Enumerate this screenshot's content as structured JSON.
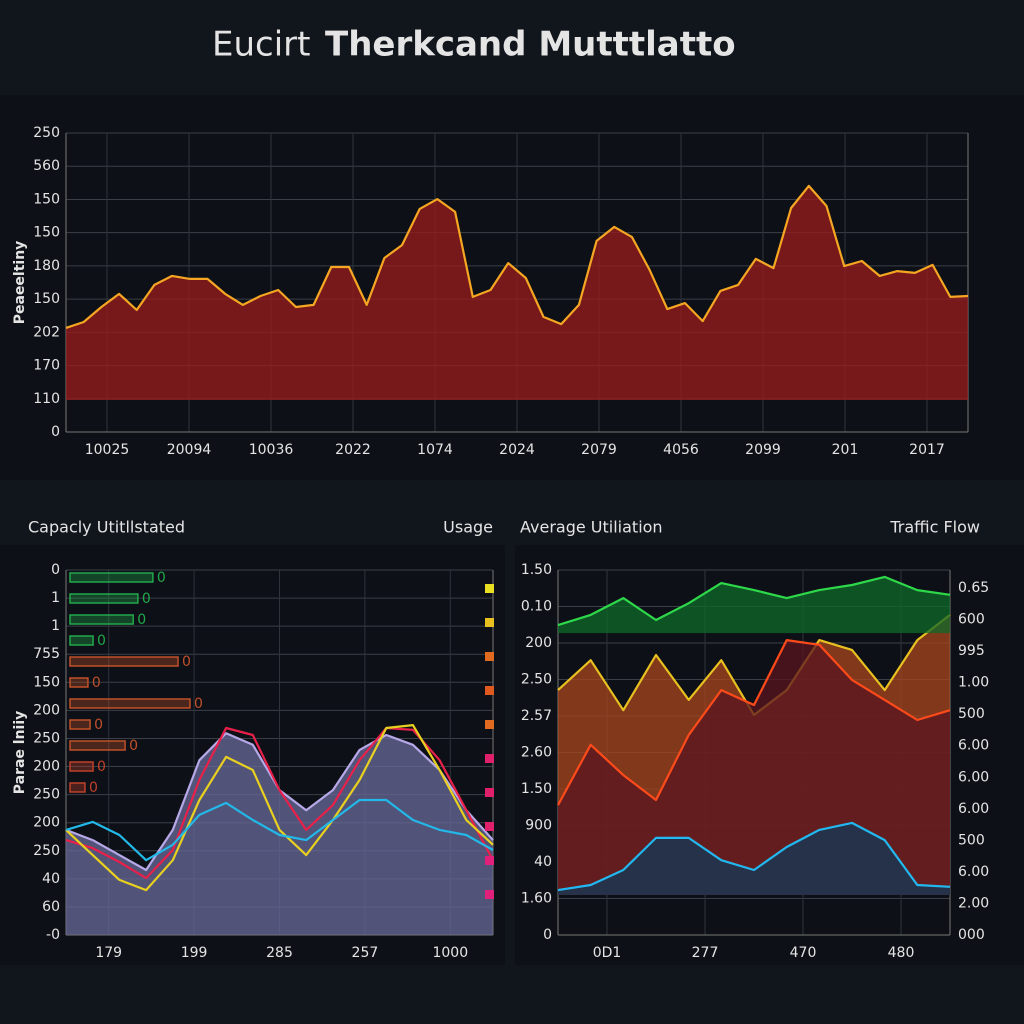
{
  "header": {
    "title_light": "Eucirt",
    "title_bold": "Therkcand Mutttlatto"
  },
  "chart_data": [
    {
      "type": "area",
      "y_axis_label": "Peaeeltiny",
      "y_labels": [
        "250",
        "560",
        "150",
        "150",
        "180",
        "150",
        "202",
        "170",
        "110",
        "0"
      ],
      "x_labels": [
        "10025",
        "20094",
        "10036",
        "2022",
        "1074",
        "2024",
        "2079",
        "4056",
        "2099",
        "201",
        "2017"
      ],
      "ylim": [
        0,
        100
      ],
      "grid": true,
      "series": [
        {
          "color": "#f5a623",
          "fill": "#9b1c1c",
          "base": 10.7,
          "values": [
            34.8,
            36.8,
            41.8,
            46.2,
            40.8,
            49.2,
            52.2,
            51.2,
            51.2,
            46.2,
            42.5,
            45.5,
            47.5,
            41.8,
            42.5,
            55.2,
            55.2,
            42.5,
            58.2,
            62.5,
            74.6,
            77.9,
            73.6,
            45.2,
            47.5,
            56.5,
            51.5,
            38.5,
            36.1,
            42.5,
            63.9,
            68.6,
            65.2,
            54.2,
            41.1,
            43.1,
            37.1,
            47.2,
            49.2,
            57.9,
            54.8,
            74.9,
            82.3,
            75.6,
            55.5,
            57.2,
            52.2,
            53.8,
            53.2,
            55.9,
            45.2,
            45.5
          ]
        }
      ]
    },
    {
      "type": "combo",
      "title": "Capacly Utitllstated",
      "right_title": "Usage",
      "y_axis_label": "Parae lniiy",
      "y_labels": [
        "0",
        "1",
        "1",
        "755",
        "150",
        "200",
        "250",
        "200",
        "250",
        "200",
        "250",
        "40",
        "60",
        "-0"
      ],
      "x_labels": [
        "179",
        "199",
        "285",
        "257",
        "1000"
      ],
      "ylim": [
        0,
        100
      ],
      "xlim": [
        0,
        100
      ],
      "grid": true,
      "bars": {
        "values": [
          19.4,
          15.9,
          14.8,
          5.4,
          25.3,
          4.2,
          28.1,
          4.7,
          12.9,
          5.4,
          3.5
        ],
        "colors": [
          "#22a84a",
          "#22a84a",
          "#22a84a",
          "#22a84a",
          "#c0502a",
          "#c0502a",
          "#c0502a",
          "#c0502a",
          "#c0502a",
          "#c0402a",
          "#c0402a"
        ],
        "annotations": [
          "0",
          "0",
          "0",
          "0",
          "0",
          "0",
          "0",
          "0",
          "0",
          "0",
          "0"
        ]
      },
      "markers": [
        "#e8e020",
        "#e8c020",
        "#e06a20",
        "#e05a20",
        "#e06a20",
        "#e0206a",
        "#e0206a",
        "#e0206a",
        "#e0207a",
        "#e0207a"
      ],
      "series": [
        {
          "color": "#b7a8e8",
          "fill": "#6a6a9a",
          "values": [
            28.8,
            26.0,
            21.9,
            17.8,
            28.8,
            47.9,
            55.3,
            52.1,
            39.7,
            34.2,
            39.7,
            50.7,
            54.8,
            52.1,
            45.2,
            34.2,
            26.0
          ]
        },
        {
          "color": "#e8204a",
          "values": [
            26.0,
            23.8,
            20.0,
            15.6,
            23.3,
            42.5,
            56.7,
            54.8,
            39.7,
            28.8,
            35.6,
            47.9,
            56.7,
            56.2,
            47.9,
            34.2,
            20.5
          ]
        },
        {
          "color": "#e8d020",
          "values": [
            28.8,
            21.9,
            15.1,
            12.3,
            20.5,
            37.0,
            48.8,
            45.2,
            28.8,
            21.9,
            31.5,
            42.5,
            56.7,
            57.5,
            45.2,
            31.5,
            24.7
          ]
        },
        {
          "color": "#22b8e8",
          "values": [
            28.8,
            31.0,
            27.4,
            20.5,
            24.7,
            32.9,
            36.2,
            31.5,
            27.4,
            26.0,
            31.5,
            37.0,
            37.0,
            31.5,
            28.8,
            27.4,
            23.3
          ]
        }
      ]
    },
    {
      "type": "area",
      "title": "Average Utiliation",
      "right_title": "Traffic Flow",
      "y_labels": [
        "1.50",
        "0.10",
        "200",
        "2.50",
        "2.57",
        "2.60",
        "1.50",
        "900",
        "40",
        "1.60",
        "0"
      ],
      "y2_labels": [
        "0.65",
        "600",
        "995",
        "1.00",
        "500",
        "6.00",
        "6.00",
        "6.00",
        "500",
        "6.00",
        "2.00",
        "000"
      ],
      "x_labels": [
        "0D1",
        "277",
        "470",
        "480"
      ],
      "ylim": [
        0,
        100
      ],
      "grid": true,
      "series": [
        {
          "color": "#e8c020",
          "fill": "#a8461e",
          "base": 11.0,
          "values": [
            67.1,
            75.3,
            61.6,
            76.7,
            64.4,
            75.3,
            60.3,
            67.1,
            80.8,
            78.1,
            67.1,
            80.8,
            87.7
          ]
        },
        {
          "color": "#ff4a1a",
          "fill": "#5a1420",
          "base": 11.0,
          "values": [
            35.6,
            52.1,
            43.8,
            37.0,
            54.8,
            67.1,
            63.0,
            80.8,
            79.5,
            69.9,
            64.4,
            58.9,
            61.6
          ]
        },
        {
          "color": "#2ed84a",
          "fill": "#0e6a2a",
          "base": 82.7,
          "values": [
            84.9,
            87.7,
            92.3,
            86.3,
            90.9,
            96.4,
            94.5,
            92.3,
            94.5,
            95.9,
            98.1,
            94.5,
            93.2
          ]
        },
        {
          "color": "#22b8f0",
          "fill": "#123a5a",
          "base": 11.0,
          "values": [
            12.3,
            13.7,
            17.8,
            26.6,
            26.6,
            20.5,
            17.8,
            24.1,
            28.8,
            30.7,
            26.0,
            13.7,
            13.2
          ]
        }
      ]
    }
  ]
}
